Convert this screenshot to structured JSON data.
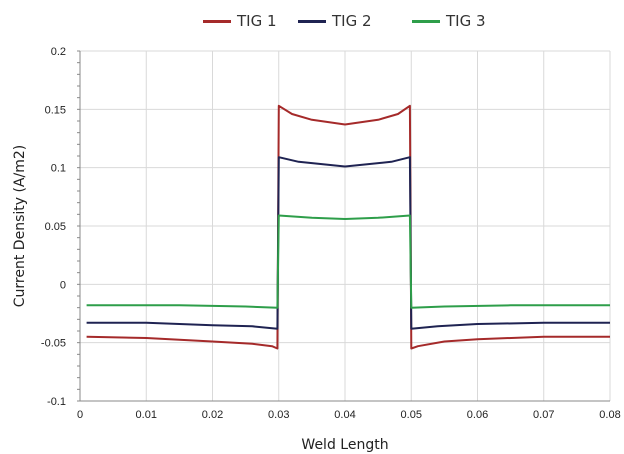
{
  "chart_data": {
    "type": "line",
    "title": "",
    "xlabel": "Weld Length",
    "ylabel": "Current Density (A/m2)",
    "xlim": [
      0,
      0.08
    ],
    "ylim": [
      -0.1,
      0.2
    ],
    "grid": true,
    "legend_position": "top",
    "x_ticks": [
      "0",
      "0.01",
      "0.02",
      "0.03",
      "0.04",
      "0.05",
      "0.06",
      "0.07",
      "0.08"
    ],
    "y_ticks": [
      "-0.1",
      "-0.05",
      "0",
      "0.05",
      "0.1",
      "0.15",
      "0.2"
    ],
    "series": [
      {
        "name": "TIG 1",
        "color": "#a52a2a",
        "points": [
          [
            0.001,
            -0.045
          ],
          [
            0.01,
            -0.046
          ],
          [
            0.02,
            -0.049
          ],
          [
            0.026,
            -0.051
          ],
          [
            0.029,
            -0.053
          ],
          [
            0.0298,
            -0.055
          ],
          [
            0.03,
            0.153
          ],
          [
            0.032,
            0.146
          ],
          [
            0.035,
            0.141
          ],
          [
            0.04,
            0.137
          ],
          [
            0.045,
            0.141
          ],
          [
            0.048,
            0.146
          ],
          [
            0.0498,
            0.153
          ],
          [
            0.05,
            -0.055
          ],
          [
            0.051,
            -0.053
          ],
          [
            0.055,
            -0.049
          ],
          [
            0.06,
            -0.047
          ],
          [
            0.07,
            -0.045
          ],
          [
            0.08,
            -0.045
          ]
        ]
      },
      {
        "name": "TIG 2",
        "color": "#1f2352",
        "points": [
          [
            0.001,
            -0.033
          ],
          [
            0.01,
            -0.033
          ],
          [
            0.02,
            -0.035
          ],
          [
            0.026,
            -0.036
          ],
          [
            0.0298,
            -0.038
          ],
          [
            0.03,
            0.109
          ],
          [
            0.033,
            0.105
          ],
          [
            0.04,
            0.101
          ],
          [
            0.047,
            0.105
          ],
          [
            0.0498,
            0.109
          ],
          [
            0.05,
            -0.038
          ],
          [
            0.054,
            -0.036
          ],
          [
            0.06,
            -0.034
          ],
          [
            0.07,
            -0.033
          ],
          [
            0.08,
            -0.033
          ]
        ]
      },
      {
        "name": "TIG 3",
        "color": "#2e9e4a",
        "points": [
          [
            0.001,
            -0.018
          ],
          [
            0.015,
            -0.018
          ],
          [
            0.025,
            -0.019
          ],
          [
            0.0298,
            -0.02
          ],
          [
            0.03,
            0.059
          ],
          [
            0.035,
            0.057
          ],
          [
            0.04,
            0.056
          ],
          [
            0.045,
            0.057
          ],
          [
            0.0498,
            0.059
          ],
          [
            0.05,
            -0.02
          ],
          [
            0.055,
            -0.019
          ],
          [
            0.065,
            -0.018
          ],
          [
            0.08,
            -0.018
          ]
        ]
      }
    ]
  }
}
